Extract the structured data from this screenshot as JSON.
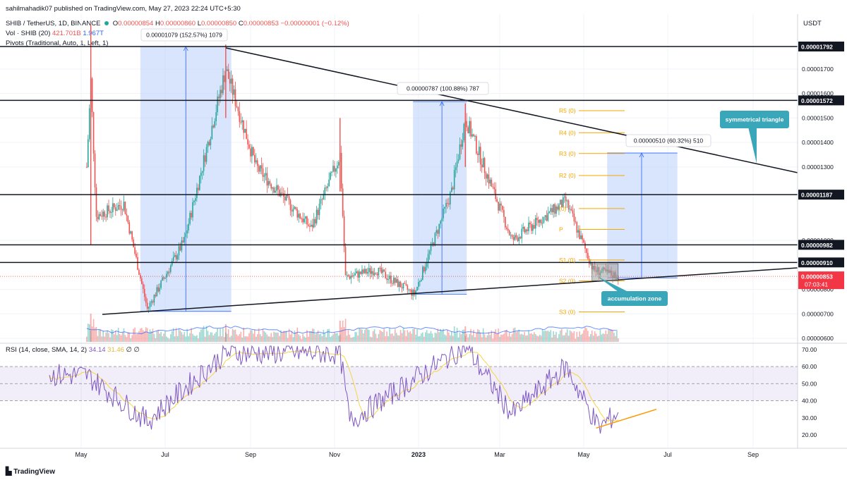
{
  "header": {
    "published": "sahilmahadik07 published on TradingView.com, May 27, 2023 22:24 UTC+5:30",
    "symbol_line": "SHIB / TetherUS, 1D, BINANCE",
    "ohlc": {
      "o": "O",
      "o_val": "0.00000854",
      "h": "H",
      "h_val": "0.00000860",
      "l": "L",
      "l_val": "0.00000850",
      "c": "C",
      "c_val": "0.00000853",
      "chg": "−0.00000001 (−0.12%)"
    },
    "vol_line": "Vol · SHIB (20)",
    "vol_val1": "421.701B",
    "vol_val2": "1.967T",
    "pivots_line": "Pivots (Traditional, Auto, 1, Left, 1)",
    "currency": "USDT"
  },
  "price_axis": {
    "ticks": [
      {
        "label": "0.00001700",
        "value": 1700
      },
      {
        "label": "0.00001600",
        "value": 1600
      },
      {
        "label": "0.00001500",
        "value": 1500
      },
      {
        "label": "0.00001400",
        "value": 1400
      },
      {
        "label": "0.00001300",
        "value": 1300
      },
      {
        "label": "0.00001000",
        "value": 1000
      },
      {
        "label": "0.00000800",
        "value": 800
      },
      {
        "label": "0.00000700",
        "value": 700
      },
      {
        "label": "0.00000600",
        "value": 600
      }
    ],
    "levels": [
      {
        "label": "0.00001792",
        "value": 1792
      },
      {
        "label": "0.00001572",
        "value": 1572
      },
      {
        "label": "0.00001187",
        "value": 1187
      },
      {
        "label": "0.00000982",
        "value": 982
      },
      {
        "label": "0.00000910",
        "value": 910
      }
    ],
    "last_price": {
      "label": "0.00000853",
      "value": 853,
      "countdown": "07:03:41",
      "color": "#f23645"
    }
  },
  "time_axis": {
    "labels": [
      {
        "label": "May",
        "bold": false
      },
      {
        "label": "Jul",
        "bold": false
      },
      {
        "label": "Sep",
        "bold": false
      },
      {
        "label": "Nov",
        "bold": false
      },
      {
        "label": "2023",
        "bold": true
      },
      {
        "label": "Mar",
        "bold": false
      },
      {
        "label": "May",
        "bold": false
      },
      {
        "label": "Jul",
        "bold": false
      },
      {
        "label": "Sep",
        "bold": false
      }
    ]
  },
  "annotations": {
    "measure1": "0.00001079 (152.57%) 1079",
    "measure2": "0.00000787 (100.88%) 787",
    "measure3": "0.00000510 (60.32%) 510",
    "symmetrical_triangle": "symmetrical triangle",
    "accumulation_zone": "accumulation zone"
  },
  "pivots": [
    {
      "label": "R5 (0)",
      "value": 1530
    },
    {
      "label": "R4 (0)",
      "value": 1440
    },
    {
      "label": "R3 (0)",
      "value": 1355
    },
    {
      "label": "R2 (0)",
      "value": 1265
    },
    {
      "label": "(0)",
      "value": 1130
    },
    {
      "label": "P",
      "value": 1045
    },
    {
      "label": "S1 (0)",
      "value": 920
    },
    {
      "label": "S2 (0)",
      "value": 835
    },
    {
      "label": "S3 (0)",
      "value": 708
    }
  ],
  "rsi": {
    "legend": "RSI (14, close, SMA, 14, 2)",
    "rsi_val": "34.14",
    "sma_val": "31.46",
    "extra1": "∅",
    "extra2": "∅",
    "ticks": [
      "70.00",
      "60.00",
      "50.00",
      "40.00",
      "30.00",
      "20.00"
    ],
    "rsi_color": "#7e57c2",
    "sma_color": "#f5d547",
    "trend_color": "#ff9800"
  },
  "colors": {
    "up": "#26a69a",
    "down": "#ef5350",
    "measure_fill": "#bfd4fb",
    "callout": "#3aa6b9"
  },
  "branding": "TradingView",
  "chart_data": {
    "type": "candlestick",
    "symbol": "SHIB / TetherUS",
    "interval": "1D",
    "price_units": "×1e-8 USDT",
    "ylim": [
      560,
      1880
    ],
    "close_approx": [
      {
        "date": "2022-05-05",
        "close": 1300
      },
      {
        "date": "2022-05-08",
        "close": 1650
      },
      {
        "date": "2022-05-12",
        "close": 1100
      },
      {
        "date": "2022-06-01",
        "close": 1150
      },
      {
        "date": "2022-06-18",
        "close": 720
      },
      {
        "date": "2022-07-15",
        "close": 1000
      },
      {
        "date": "2022-08-14",
        "close": 1700
      },
      {
        "date": "2022-09-05",
        "close": 1300
      },
      {
        "date": "2022-10-15",
        "close": 1050
      },
      {
        "date": "2022-11-05",
        "close": 1350
      },
      {
        "date": "2022-11-09",
        "close": 850
      },
      {
        "date": "2022-12-01",
        "close": 880
      },
      {
        "date": "2022-12-29",
        "close": 780
      },
      {
        "date": "2023-01-25",
        "close": 1200
      },
      {
        "date": "2023-02-04",
        "close": 1500
      },
      {
        "date": "2023-03-10",
        "close": 1000
      },
      {
        "date": "2023-04-18",
        "close": 1160
      },
      {
        "date": "2023-05-08",
        "close": 880
      },
      {
        "date": "2023-05-27",
        "close": 853
      }
    ],
    "horizontal_levels": [
      1792,
      1572,
      1187,
      982,
      910
    ],
    "rsi_approx": [
      {
        "date": "2022-05-05",
        "rsi": 55
      },
      {
        "date": "2022-06-18",
        "rsi": 28
      },
      {
        "date": "2022-08-14",
        "rsi": 68
      },
      {
        "date": "2022-11-05",
        "rsi": 68
      },
      {
        "date": "2022-11-12",
        "rsi": 28
      },
      {
        "date": "2023-02-04",
        "rsi": 72
      },
      {
        "date": "2023-03-10",
        "rsi": 32
      },
      {
        "date": "2023-04-18",
        "rsi": 60
      },
      {
        "date": "2023-05-12",
        "rsi": 24
      },
      {
        "date": "2023-05-27",
        "rsi": 34
      }
    ],
    "rsi_ylim": [
      16,
      72
    ]
  }
}
